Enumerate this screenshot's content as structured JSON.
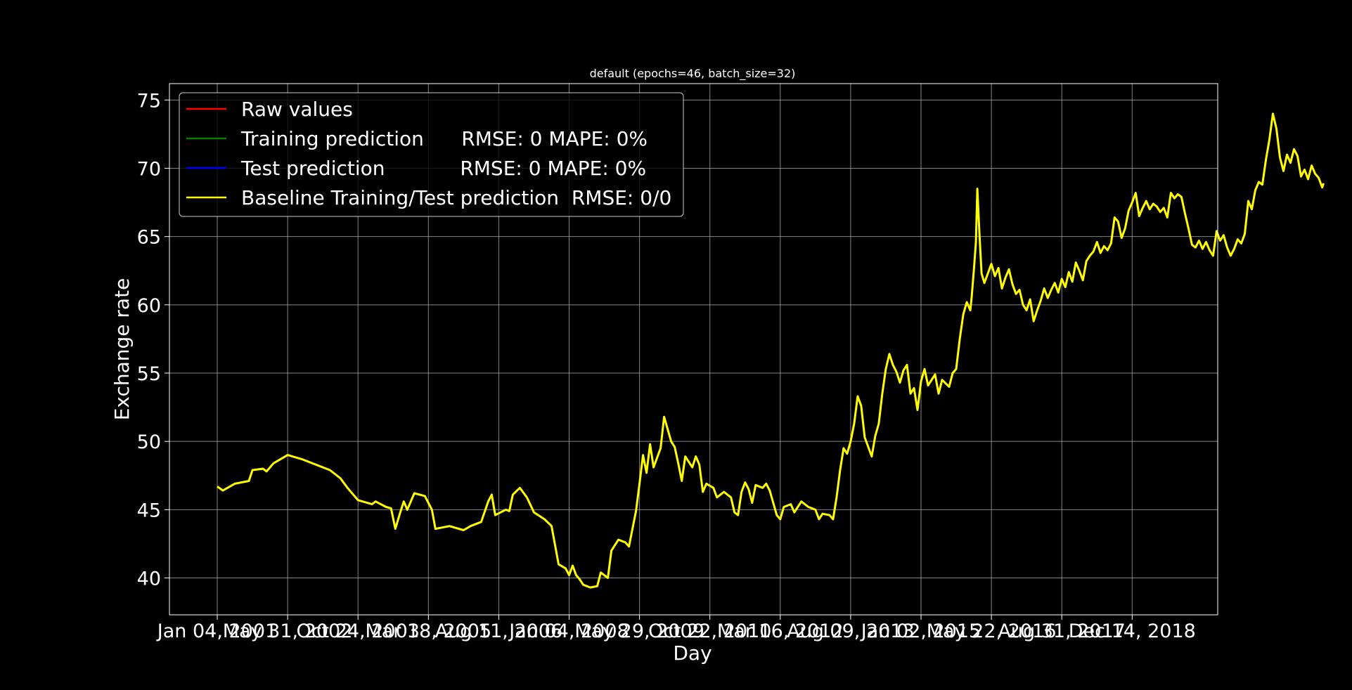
{
  "chart_data": {
    "type": "line",
    "title": "default (epochs=46, batch_size=32)",
    "xlabel": "Day",
    "ylabel": "Exchange rate",
    "ylim": [
      37.3,
      76.2
    ],
    "yticks": [
      40,
      45,
      50,
      55,
      60,
      65,
      70,
      75
    ],
    "grid": true,
    "legend_position": "top-left",
    "x_tick_labels": [
      "Jan 04, 2001",
      "May 31, 2002",
      "Oct 24, 2003",
      "Mar 18, 2005",
      "Aug 11, 2006",
      "Jan 04, 2008",
      "May 29, 2009",
      "Oct 22, 2010",
      "Mar 16, 2012",
      "Aug 09, 2013",
      "Jan 02, 2015",
      "May 22, 2016",
      "Aug 31, 2017",
      "Dec 14, 2018"
    ],
    "x_range_index": [
      -0.7,
      14.2
    ],
    "series": [
      {
        "name": "Raw values",
        "legend_label": "Raw values",
        "color": "#ff0000",
        "points": []
      },
      {
        "name": "Training prediction",
        "legend_label": "Training prediction      RMSE: 0 MAPE: 0%",
        "color": "#008000",
        "points": []
      },
      {
        "name": "Test prediction",
        "legend_label": "Test prediction            RMSE: 0 MAPE: 0%",
        "color": "#0000ff",
        "points": []
      },
      {
        "name": "Baseline Training/Test prediction",
        "legend_label": "Baseline Training/Test prediction  RMSE: 0/0",
        "color": "#ffff00",
        "points": [
          [
            0.0,
            46.7
          ],
          [
            0.08,
            46.4
          ],
          [
            0.25,
            46.9
          ],
          [
            0.45,
            47.1
          ],
          [
            0.5,
            47.9
          ],
          [
            0.65,
            48.0
          ],
          [
            0.7,
            47.8
          ],
          [
            0.8,
            48.4
          ],
          [
            1.0,
            49.0
          ],
          [
            1.2,
            48.7
          ],
          [
            1.4,
            48.3
          ],
          [
            1.6,
            47.9
          ],
          [
            1.75,
            47.3
          ],
          [
            1.85,
            46.6
          ],
          [
            2.0,
            45.7
          ],
          [
            2.2,
            45.4
          ],
          [
            2.25,
            45.6
          ],
          [
            2.4,
            45.2
          ],
          [
            2.47,
            45.1
          ],
          [
            2.53,
            43.6
          ],
          [
            2.6,
            44.8
          ],
          [
            2.65,
            45.6
          ],
          [
            2.7,
            45.0
          ],
          [
            2.8,
            46.2
          ],
          [
            2.95,
            46.0
          ],
          [
            3.05,
            45.0
          ],
          [
            3.1,
            43.6
          ],
          [
            3.3,
            43.8
          ],
          [
            3.5,
            43.5
          ],
          [
            3.6,
            43.8
          ],
          [
            3.75,
            44.1
          ],
          [
            3.85,
            45.6
          ],
          [
            3.9,
            46.1
          ],
          [
            3.95,
            44.6
          ],
          [
            4.1,
            45.0
          ],
          [
            4.15,
            44.9
          ],
          [
            4.2,
            46.1
          ],
          [
            4.3,
            46.6
          ],
          [
            4.4,
            45.9
          ],
          [
            4.5,
            44.8
          ],
          [
            4.65,
            44.3
          ],
          [
            4.75,
            43.8
          ],
          [
            4.85,
            41.0
          ],
          [
            4.95,
            40.7
          ],
          [
            5.0,
            40.2
          ],
          [
            5.05,
            40.9
          ],
          [
            5.1,
            40.2
          ],
          [
            5.15,
            39.9
          ],
          [
            5.2,
            39.5
          ],
          [
            5.3,
            39.3
          ],
          [
            5.4,
            39.4
          ],
          [
            5.45,
            40.4
          ],
          [
            5.55,
            40.0
          ],
          [
            5.6,
            42.0
          ],
          [
            5.7,
            42.8
          ],
          [
            5.8,
            42.6
          ],
          [
            5.85,
            42.3
          ],
          [
            5.95,
            44.9
          ],
          [
            6.0,
            46.9
          ],
          [
            6.05,
            49.0
          ],
          [
            6.1,
            47.7
          ],
          [
            6.15,
            49.8
          ],
          [
            6.2,
            48.1
          ],
          [
            6.3,
            49.5
          ],
          [
            6.35,
            51.8
          ],
          [
            6.4,
            50.9
          ],
          [
            6.45,
            50.0
          ],
          [
            6.5,
            49.6
          ],
          [
            6.55,
            48.4
          ],
          [
            6.6,
            47.1
          ],
          [
            6.65,
            48.9
          ],
          [
            6.75,
            48.1
          ],
          [
            6.8,
            48.9
          ],
          [
            6.85,
            48.3
          ],
          [
            6.9,
            46.3
          ],
          [
            6.95,
            46.9
          ],
          [
            7.05,
            46.6
          ],
          [
            7.1,
            45.9
          ],
          [
            7.2,
            46.3
          ],
          [
            7.3,
            45.9
          ],
          [
            7.35,
            44.8
          ],
          [
            7.4,
            44.6
          ],
          [
            7.45,
            46.3
          ],
          [
            7.5,
            47.0
          ],
          [
            7.55,
            46.5
          ],
          [
            7.6,
            45.5
          ],
          [
            7.65,
            46.8
          ],
          [
            7.75,
            46.6
          ],
          [
            7.8,
            46.9
          ],
          [
            7.85,
            46.4
          ],
          [
            7.9,
            45.5
          ],
          [
            7.95,
            44.6
          ],
          [
            8.0,
            44.3
          ],
          [
            8.05,
            45.2
          ],
          [
            8.15,
            45.4
          ],
          [
            8.2,
            44.8
          ],
          [
            8.3,
            45.6
          ],
          [
            8.4,
            45.2
          ],
          [
            8.5,
            45.0
          ],
          [
            8.55,
            44.3
          ],
          [
            8.6,
            44.7
          ],
          [
            8.7,
            44.6
          ],
          [
            8.75,
            44.3
          ],
          [
            8.8,
            45.9
          ],
          [
            8.85,
            47.9
          ],
          [
            8.9,
            49.5
          ],
          [
            8.95,
            49.1
          ],
          [
            9.0,
            50.0
          ],
          [
            9.05,
            51.3
          ],
          [
            9.1,
            53.3
          ],
          [
            9.15,
            52.6
          ],
          [
            9.2,
            50.3
          ],
          [
            9.25,
            49.6
          ],
          [
            9.3,
            48.9
          ],
          [
            9.35,
            50.4
          ],
          [
            9.4,
            51.3
          ],
          [
            9.45,
            53.5
          ],
          [
            9.5,
            55.3
          ],
          [
            9.55,
            56.4
          ],
          [
            9.6,
            55.6
          ],
          [
            9.65,
            55.1
          ],
          [
            9.7,
            54.3
          ],
          [
            9.75,
            55.2
          ],
          [
            9.8,
            55.6
          ],
          [
            9.85,
            53.5
          ],
          [
            9.9,
            53.9
          ],
          [
            9.95,
            52.3
          ],
          [
            10.0,
            54.4
          ],
          [
            10.05,
            55.3
          ],
          [
            10.1,
            54.1
          ],
          [
            10.2,
            54.9
          ],
          [
            10.25,
            53.5
          ],
          [
            10.3,
            54.5
          ],
          [
            10.4,
            54.0
          ],
          [
            10.45,
            55.0
          ],
          [
            10.5,
            55.3
          ],
          [
            10.55,
            57.5
          ],
          [
            10.6,
            59.3
          ],
          [
            10.65,
            60.2
          ],
          [
            10.7,
            59.6
          ],
          [
            10.72,
            60.6
          ],
          [
            10.75,
            62.5
          ],
          [
            10.78,
            64.6
          ],
          [
            10.8,
            68.5
          ],
          [
            10.83,
            65.2
          ],
          [
            10.86,
            62.3
          ],
          [
            10.9,
            61.6
          ],
          [
            10.95,
            62.3
          ],
          [
            11.0,
            63.0
          ],
          [
            11.05,
            62.1
          ],
          [
            11.1,
            62.7
          ],
          [
            11.15,
            61.2
          ],
          [
            11.2,
            62.0
          ],
          [
            11.25,
            62.6
          ],
          [
            11.3,
            61.5
          ],
          [
            11.35,
            60.8
          ],
          [
            11.4,
            61.1
          ],
          [
            11.45,
            60.0
          ],
          [
            11.5,
            59.6
          ],
          [
            11.55,
            60.4
          ],
          [
            11.6,
            58.8
          ],
          [
            11.65,
            59.6
          ],
          [
            11.7,
            60.3
          ],
          [
            11.75,
            61.2
          ],
          [
            11.8,
            60.5
          ],
          [
            11.85,
            61.1
          ],
          [
            11.9,
            61.6
          ],
          [
            11.95,
            60.9
          ],
          [
            12.0,
            61.9
          ],
          [
            12.05,
            61.3
          ],
          [
            12.1,
            62.4
          ],
          [
            12.15,
            61.7
          ],
          [
            12.2,
            63.1
          ],
          [
            12.25,
            62.5
          ],
          [
            12.3,
            61.8
          ],
          [
            12.35,
            63.2
          ],
          [
            12.4,
            63.6
          ],
          [
            12.45,
            63.9
          ],
          [
            12.5,
            64.6
          ],
          [
            12.55,
            63.8
          ],
          [
            12.6,
            64.3
          ],
          [
            12.65,
            64.0
          ],
          [
            12.7,
            64.5
          ],
          [
            12.75,
            66.4
          ],
          [
            12.8,
            66.1
          ],
          [
            12.85,
            64.9
          ],
          [
            12.9,
            65.6
          ],
          [
            12.95,
            66.9
          ],
          [
            13.0,
            67.5
          ],
          [
            13.05,
            68.2
          ],
          [
            13.1,
            66.5
          ],
          [
            13.15,
            67.1
          ],
          [
            13.2,
            67.6
          ],
          [
            13.25,
            67.0
          ],
          [
            13.3,
            67.4
          ],
          [
            13.35,
            67.2
          ],
          [
            13.4,
            66.8
          ],
          [
            13.45,
            67.1
          ],
          [
            13.5,
            66.4
          ],
          [
            13.55,
            68.2
          ],
          [
            13.6,
            67.8
          ],
          [
            13.65,
            68.1
          ],
          [
            13.7,
            67.9
          ],
          [
            13.75,
            66.7
          ],
          [
            13.8,
            65.6
          ],
          [
            13.85,
            64.4
          ],
          [
            13.9,
            64.2
          ],
          [
            13.95,
            64.7
          ],
          [
            14.0,
            64.1
          ],
          [
            14.05,
            64.6
          ],
          [
            14.1,
            64.0
          ],
          [
            14.15,
            63.6
          ],
          [
            14.2,
            65.4
          ],
          [
            14.25,
            64.7
          ],
          [
            14.3,
            65.1
          ],
          [
            14.35,
            64.2
          ],
          [
            14.4,
            63.6
          ],
          [
            14.45,
            64.1
          ],
          [
            14.5,
            64.8
          ],
          [
            14.55,
            64.5
          ],
          [
            14.6,
            65.2
          ],
          [
            14.65,
            67.6
          ],
          [
            14.7,
            67.0
          ],
          [
            14.75,
            68.4
          ],
          [
            14.8,
            69.0
          ],
          [
            14.85,
            68.8
          ],
          [
            14.9,
            70.6
          ],
          [
            14.95,
            72.1
          ],
          [
            15.0,
            74.0
          ],
          [
            15.05,
            72.9
          ],
          [
            15.1,
            70.8
          ],
          [
            15.15,
            69.8
          ],
          [
            15.2,
            71.0
          ],
          [
            15.25,
            70.4
          ],
          [
            15.3,
            71.4
          ],
          [
            15.35,
            70.9
          ],
          [
            15.4,
            69.4
          ],
          [
            15.45,
            69.9
          ],
          [
            15.5,
            69.2
          ],
          [
            15.55,
            70.2
          ],
          [
            15.6,
            69.6
          ],
          [
            15.65,
            69.3
          ],
          [
            15.7,
            68.6
          ],
          [
            15.72,
            68.9
          ]
        ]
      }
    ]
  }
}
